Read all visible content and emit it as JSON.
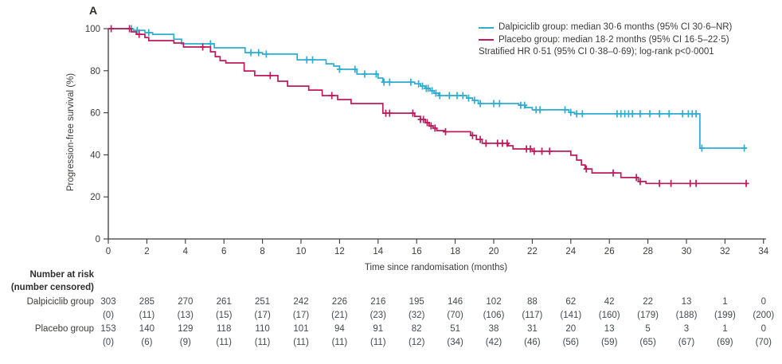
{
  "panel_label": "A",
  "colors": {
    "dalpiciclib": "#2fadd1",
    "placebo": "#be1a5c",
    "axis": "#3a3a38",
    "text": "#3b3b39",
    "table_text": "#45494c"
  },
  "legend": {
    "entries": [
      {
        "label": "Dalpiciclib group: median 30·6 months (95% CI 30·6–NR)",
        "color": "#2fadd1"
      },
      {
        "label": "Placebo group: median 18·2 months (95% CI 16·5–22·5)",
        "color": "#be1a5c"
      }
    ],
    "note": "Stratified HR 0·51 (95% CI 0·38–0·69); log-rank p<0·0001"
  },
  "chart_data": {
    "type": "line",
    "subtype": "kaplan-meier-step",
    "title": "",
    "xlabel": "Time since randomisation (months)",
    "ylabel": "Progression-free survival (%)",
    "xlim": [
      0,
      34
    ],
    "ylim": [
      0,
      100
    ],
    "xticks": [
      0,
      2,
      4,
      6,
      8,
      10,
      12,
      14,
      16,
      18,
      20,
      22,
      24,
      26,
      28,
      30,
      32,
      34
    ],
    "yticks": [
      0,
      20,
      40,
      60,
      80,
      100
    ],
    "grid": false,
    "legend_position": "top-right",
    "series": [
      {
        "name": "Dalpiciclib group",
        "color": "#2fadd1",
        "points": [
          [
            0,
            100
          ],
          [
            1.3,
            99.2
          ],
          [
            1.9,
            98.1
          ],
          [
            2.3,
            97.3
          ],
          [
            3.4,
            95.0
          ],
          [
            3.8,
            92.8
          ],
          [
            5.5,
            90.9
          ],
          [
            7.1,
            88.6
          ],
          [
            8.0,
            87.9
          ],
          [
            9.8,
            85.2
          ],
          [
            11.3,
            83.3
          ],
          [
            11.7,
            82.2
          ],
          [
            12.0,
            80.7
          ],
          [
            12.9,
            78.4
          ],
          [
            14.0,
            76.5
          ],
          [
            14.25,
            74.6
          ],
          [
            15.9,
            73.8
          ],
          [
            16.2,
            72.7
          ],
          [
            16.45,
            71.6
          ],
          [
            16.7,
            70.5
          ],
          [
            16.9,
            69.3
          ],
          [
            17.15,
            68.2
          ],
          [
            18.6,
            67.0
          ],
          [
            18.9,
            65.9
          ],
          [
            19.2,
            64.4
          ],
          [
            21.3,
            63.6
          ],
          [
            21.65,
            62.5
          ],
          [
            22.0,
            61.4
          ],
          [
            23.9,
            60.2
          ],
          [
            24.2,
            59.5
          ],
          [
            30.7,
            43.2
          ],
          [
            33.1,
            43.2
          ]
        ],
        "censor_times": [
          1.2,
          1.5,
          2.1,
          5.3,
          7.4,
          7.8,
          8.2,
          10.3,
          10.6,
          12.0,
          12.8,
          13.3,
          13.9,
          14.3,
          14.6,
          15.7,
          16.1,
          16.3,
          16.5,
          16.6,
          16.8,
          17.0,
          17.2,
          17.7,
          18.1,
          18.4,
          18.7,
          19.0,
          19.3,
          20.0,
          20.3,
          21.4,
          21.6,
          22.2,
          22.4,
          23.7,
          24.0,
          24.3,
          24.6,
          26.4,
          26.6,
          26.8,
          27.0,
          27.2,
          27.6,
          28.1,
          28.6,
          29.1,
          29.8,
          30.1,
          30.3,
          30.5,
          30.8,
          33.0
        ]
      },
      {
        "name": "Placebo group",
        "color": "#be1a5c",
        "points": [
          [
            0,
            100
          ],
          [
            1.2,
            98.5
          ],
          [
            1.45,
            97.3
          ],
          [
            1.9,
            95.8
          ],
          [
            2.1,
            94.3
          ],
          [
            3.4,
            93.2
          ],
          [
            3.9,
            91.3
          ],
          [
            5.3,
            89.0
          ],
          [
            5.55,
            86.7
          ],
          [
            5.8,
            84.8
          ],
          [
            6.1,
            83.7
          ],
          [
            7.05,
            79.9
          ],
          [
            7.6,
            77.7
          ],
          [
            8.8,
            75.0
          ],
          [
            9.3,
            72.7
          ],
          [
            10.4,
            70.8
          ],
          [
            11.1,
            68.2
          ],
          [
            11.9,
            66.3
          ],
          [
            12.6,
            64.4
          ],
          [
            14.25,
            59.8
          ],
          [
            15.9,
            58.3
          ],
          [
            16.2,
            56.8
          ],
          [
            16.45,
            55.3
          ],
          [
            16.65,
            53.8
          ],
          [
            16.85,
            52.7
          ],
          [
            17.05,
            51.5
          ],
          [
            17.45,
            51.0
          ],
          [
            18.8,
            49.2
          ],
          [
            19.1,
            47.3
          ],
          [
            19.4,
            45.5
          ],
          [
            20.75,
            44.3
          ],
          [
            21.0,
            42.8
          ],
          [
            22.0,
            41.7
          ],
          [
            24.0,
            39.8
          ],
          [
            24.3,
            37.5
          ],
          [
            24.55,
            35.2
          ],
          [
            24.75,
            33.3
          ],
          [
            25.1,
            31.4
          ],
          [
            26.6,
            29.2
          ],
          [
            27.5,
            27.3
          ],
          [
            27.9,
            26.4
          ],
          [
            33.2,
            26.4
          ]
        ],
        "censor_times": [
          0.15,
          1.1,
          1.6,
          4.9,
          8.4,
          11.6,
          14.4,
          14.6,
          15.8,
          16.2,
          16.35,
          16.55,
          16.75,
          16.95,
          17.5,
          18.9,
          19.3,
          19.6,
          20.2,
          20.45,
          20.7,
          21.7,
          21.9,
          22.1,
          22.5,
          22.9,
          24.8,
          26.2,
          27.4,
          27.6,
          28.6,
          29.2,
          30.2,
          30.5,
          33.1
        ]
      }
    ]
  },
  "risk_table": {
    "title": "Number at risk",
    "subtitle": "(number censored)",
    "time_points": [
      0,
      2,
      4,
      6,
      8,
      10,
      12,
      14,
      16,
      18,
      20,
      22,
      24,
      26,
      28,
      30,
      32,
      34
    ],
    "rows": [
      {
        "label": "Dalpiciclib group",
        "at_risk": [
          303,
          285,
          270,
          261,
          251,
          242,
          226,
          216,
          195,
          146,
          102,
          88,
          62,
          42,
          22,
          13,
          1,
          0
        ],
        "censored": [
          0,
          11,
          13,
          15,
          17,
          17,
          21,
          23,
          32,
          70,
          106,
          117,
          141,
          160,
          179,
          188,
          199,
          200
        ]
      },
      {
        "label": "Placebo group",
        "at_risk": [
          153,
          140,
          129,
          118,
          110,
          101,
          94,
          91,
          82,
          51,
          38,
          31,
          20,
          13,
          5,
          3,
          1,
          0
        ],
        "censored": [
          0,
          6,
          9,
          11,
          11,
          11,
          11,
          11,
          12,
          34,
          42,
          46,
          56,
          59,
          65,
          67,
          69,
          70
        ]
      }
    ]
  }
}
